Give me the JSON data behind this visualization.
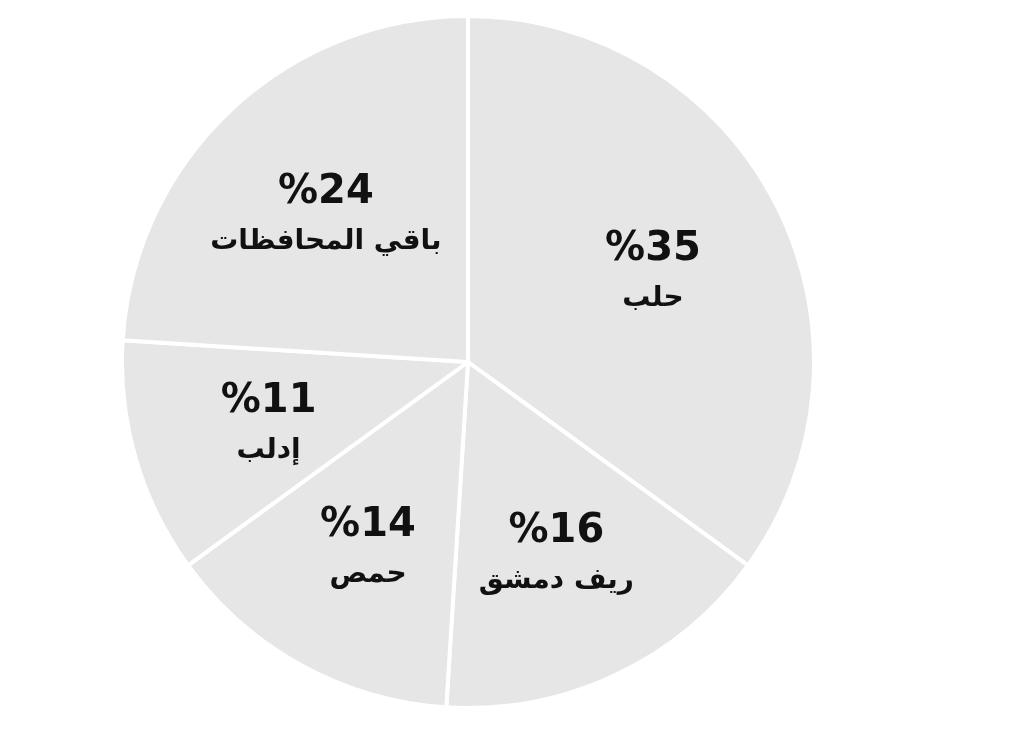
{
  "chart_data": {
    "type": "pie",
    "categories": [
      "حلب",
      "ريف دمشق",
      "حمص",
      "إدلب",
      "باقي المحافظات"
    ],
    "values": [
      35,
      16,
      14,
      11,
      24
    ],
    "value_labels": [
      "%35",
      "%16",
      "%14",
      "%11",
      "%24"
    ],
    "colors": [
      "#e6e6e6",
      "#e6e6e6",
      "#e6e6e6",
      "#e6e6e6",
      "#e6e6e6"
    ],
    "legend": false
  }
}
